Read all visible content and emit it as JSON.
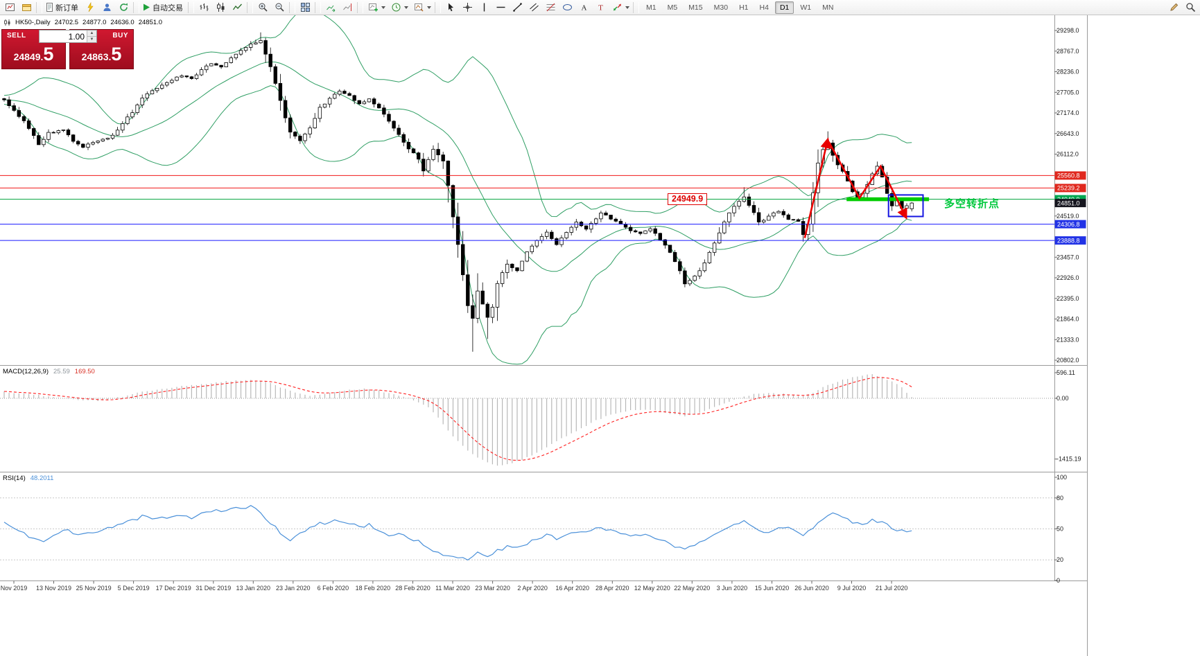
{
  "toolbar": {
    "new_order_label": "新订单",
    "autotrade_label": "自动交易",
    "timeframes": [
      "M1",
      "M5",
      "M15",
      "M30",
      "H1",
      "H4",
      "D1",
      "W1",
      "MN"
    ],
    "active_timeframe": "D1"
  },
  "chart_header": {
    "symbol_period": "HK50-,Daily",
    "open": "24702.5",
    "high": "24877.0",
    "low": "24636.0",
    "close": "24851.0"
  },
  "one_click": {
    "sell_label": "SELL",
    "buy_label": "BUY",
    "volume": "1.00",
    "sell_price_main": "24849.",
    "sell_price_big": "5",
    "buy_price_main": "24863.",
    "buy_price_big": "5"
  },
  "annotations": {
    "price_callout": "24949.9",
    "cn_note": "多空转折点"
  },
  "indicators": {
    "macd_label": "MACD(12,26,9)",
    "macd_value": "25.59",
    "macd_signal_value": "169.50",
    "rsi_label": "RSI(14)",
    "rsi_value": "48.2011"
  },
  "price_axis": {
    "ticks": [
      "29298.0",
      "28767.0",
      "28236.0",
      "27705.0",
      "27174.0",
      "26643.0",
      "26112.0",
      "24519.0",
      "23457.0",
      "22926.0",
      "22395.0",
      "21864.0",
      "21333.0",
      "20802.0"
    ],
    "badges": [
      {
        "label": "25560.8",
        "price": 25560.8,
        "bg": "#e0281e"
      },
      {
        "label": "25239.2",
        "price": 25239.2,
        "bg": "#e0281e"
      },
      {
        "label": "24949.9",
        "price": 24949.9,
        "bg": "#00a650"
      },
      {
        "label": "24851.0",
        "price": 24851.0,
        "bg": "#16161f"
      },
      {
        "label": "24306.8",
        "price": 24306.8,
        "bg": "#2233e6"
      },
      {
        "label": "23888.8",
        "price": 23888.8,
        "bg": "#2233e6"
      }
    ]
  },
  "macd_axis": [
    "596.11",
    "0.00",
    "-1415.19"
  ],
  "rsi_axis": [
    "100",
    "80",
    "50",
    "20",
    "0"
  ],
  "date_axis": [
    "Nov 2019",
    "13 Nov 2019",
    "25 Nov 2019",
    "5 Dec 2019",
    "17 Dec 2019",
    "31 Dec 2019",
    "13 Jan 2020",
    "23 Jan 2020",
    "6 Feb 2020",
    "18 Feb 2020",
    "28 Feb 2020",
    "11 Mar 2020",
    "23 Mar 2020",
    "2 Apr 2020",
    "16 Apr 2020",
    "28 Apr 2020",
    "12 May 2020",
    "22 May 2020",
    "3 Jun 2020",
    "15 Jun 2020",
    "26 Jun 2020",
    "9 Jul 2020",
    "21 Jul 2020"
  ],
  "chart_data": {
    "type": "candlestick",
    "symbol": "HK50-",
    "period": "Daily",
    "bars": 185,
    "price_range": [
      20802,
      29298
    ],
    "last_bar": {
      "open": 24702.5,
      "high": 24877.0,
      "low": 24636.0,
      "close": 24851.0
    },
    "price_keypoints": [
      [
        0,
        27500
      ],
      [
        2,
        27250
      ],
      [
        4,
        26950
      ],
      [
        6,
        26600
      ],
      [
        7,
        26350
      ],
      [
        9,
        26650
      ],
      [
        12,
        26750
      ],
      [
        14,
        26450
      ],
      [
        16,
        26300
      ],
      [
        18,
        26400
      ],
      [
        20,
        26480
      ],
      [
        22,
        26600
      ],
      [
        24,
        26900
      ],
      [
        26,
        27200
      ],
      [
        28,
        27550
      ],
      [
        30,
        27750
      ],
      [
        33,
        27950
      ],
      [
        36,
        28150
      ],
      [
        38,
        28050
      ],
      [
        40,
        28300
      ],
      [
        42,
        28450
      ],
      [
        44,
        28350
      ],
      [
        46,
        28600
      ],
      [
        48,
        28800
      ],
      [
        50,
        28950
      ],
      [
        52,
        29050
      ],
      [
        53,
        28700
      ],
      [
        54,
        28350
      ],
      [
        55,
        27950
      ],
      [
        57,
        27050
      ],
      [
        58,
        26700
      ],
      [
        60,
        26450
      ],
      [
        62,
        26800
      ],
      [
        64,
        27300
      ],
      [
        66,
        27550
      ],
      [
        68,
        27750
      ],
      [
        70,
        27600
      ],
      [
        72,
        27400
      ],
      [
        74,
        27550
      ],
      [
        76,
        27300
      ],
      [
        78,
        26950
      ],
      [
        80,
        26600
      ],
      [
        82,
        26250
      ],
      [
        84,
        26000
      ],
      [
        85,
        25700
      ],
      [
        87,
        26250
      ],
      [
        89,
        25950
      ],
      [
        90,
        25300
      ],
      [
        91,
        24500
      ],
      [
        92,
        23800
      ],
      [
        93,
        23000
      ],
      [
        94,
        22200
      ],
      [
        95,
        21900
      ],
      [
        96,
        22600
      ],
      [
        97,
        22250
      ],
      [
        98,
        21900
      ],
      [
        99,
        22150
      ],
      [
        100,
        22800
      ],
      [
        102,
        23300
      ],
      [
        104,
        23100
      ],
      [
        106,
        23600
      ],
      [
        108,
        23900
      ],
      [
        110,
        24100
      ],
      [
        112,
        23800
      ],
      [
        114,
        24100
      ],
      [
        116,
        24350
      ],
      [
        118,
        24200
      ],
      [
        121,
        24600
      ],
      [
        123,
        24450
      ],
      [
        125,
        24300
      ],
      [
        127,
        24150
      ],
      [
        129,
        24050
      ],
      [
        131,
        24200
      ],
      [
        133,
        23900
      ],
      [
        135,
        23600
      ],
      [
        137,
        23100
      ],
      [
        138,
        22750
      ],
      [
        140,
        22950
      ],
      [
        142,
        23300
      ],
      [
        145,
        24100
      ],
      [
        147,
        24600
      ],
      [
        149,
        24900
      ],
      [
        150,
        25000
      ],
      [
        152,
        24600
      ],
      [
        153,
        24350
      ],
      [
        155,
        24500
      ],
      [
        157,
        24650
      ],
      [
        159,
        24450
      ],
      [
        161,
        24400
      ],
      [
        162,
        24050
      ],
      [
        163,
        24300
      ],
      [
        164,
        25100
      ],
      [
        165,
        25900
      ],
      [
        166,
        26250
      ],
      [
        167,
        26400
      ],
      [
        168,
        26100
      ],
      [
        169,
        25850
      ],
      [
        170,
        25650
      ],
      [
        171,
        25400
      ],
      [
        172,
        25150
      ],
      [
        173,
        24980
      ],
      [
        174,
        25120
      ],
      [
        175,
        25350
      ],
      [
        176,
        25600
      ],
      [
        177,
        25780
      ],
      [
        178,
        25500
      ],
      [
        179,
        25100
      ],
      [
        180,
        24800
      ],
      [
        181,
        24920
      ],
      [
        182,
        24700
      ],
      [
        183,
        24760
      ],
      [
        184,
        24851
      ]
    ],
    "wick_overrides": [
      {
        "i": 52,
        "high": 29250
      },
      {
        "i": 95,
        "low": 21020
      },
      {
        "i": 98,
        "low": 21350
      },
      {
        "i": 150,
        "high": 25260
      },
      {
        "i": 162,
        "low": 23860
      },
      {
        "i": 167,
        "high": 26700
      },
      {
        "i": 177,
        "high": 25920
      }
    ],
    "hlines": [
      {
        "price": 25560.8,
        "color": "#f01818",
        "width": 1
      },
      {
        "price": 25239.2,
        "color": "#f01818",
        "width": 1
      },
      {
        "price": 24949.9,
        "color": "#00a23c",
        "width": 1
      },
      {
        "price": 24306.8,
        "color": "#1a1aff",
        "width": 1
      },
      {
        "price": 23888.8,
        "color": "#1a1aff",
        "width": 1
      }
    ],
    "bollinger": {
      "period": 20,
      "deviation": 2,
      "color": "#2e9e63"
    },
    "macd": {
      "keypoints": [
        [
          0,
          150
        ],
        [
          4,
          110
        ],
        [
          8,
          60
        ],
        [
          12,
          10
        ],
        [
          16,
          -40
        ],
        [
          20,
          -60
        ],
        [
          24,
          40
        ],
        [
          28,
          150
        ],
        [
          32,
          220
        ],
        [
          36,
          280
        ],
        [
          40,
          330
        ],
        [
          44,
          380
        ],
        [
          48,
          420
        ],
        [
          50,
          430
        ],
        [
          52,
          400
        ],
        [
          54,
          350
        ],
        [
          56,
          260
        ],
        [
          58,
          180
        ],
        [
          60,
          110
        ],
        [
          62,
          60
        ],
        [
          64,
          90
        ],
        [
          66,
          130
        ],
        [
          68,
          170
        ],
        [
          70,
          200
        ],
        [
          72,
          215
        ],
        [
          74,
          220
        ],
        [
          76,
          180
        ],
        [
          78,
          120
        ],
        [
          80,
          60
        ],
        [
          82,
          0
        ],
        [
          84,
          -90
        ],
        [
          86,
          -220
        ],
        [
          88,
          -450
        ],
        [
          90,
          -750
        ],
        [
          92,
          -1000
        ],
        [
          94,
          -1220
        ],
        [
          96,
          -1380
        ],
        [
          98,
          -1500
        ],
        [
          100,
          -1570
        ],
        [
          102,
          -1545
        ],
        [
          104,
          -1470
        ],
        [
          106,
          -1380
        ],
        [
          108,
          -1260
        ],
        [
          110,
          -1130
        ],
        [
          112,
          -1000
        ],
        [
          114,
          -880
        ],
        [
          116,
          -760
        ],
        [
          118,
          -640
        ],
        [
          120,
          -520
        ],
        [
          122,
          -420
        ],
        [
          124,
          -350
        ],
        [
          126,
          -300
        ],
        [
          128,
          -265
        ],
        [
          130,
          -255
        ],
        [
          132,
          -285
        ],
        [
          134,
          -330
        ],
        [
          136,
          -380
        ],
        [
          138,
          -410
        ],
        [
          140,
          -380
        ],
        [
          142,
          -310
        ],
        [
          144,
          -210
        ],
        [
          146,
          -120
        ],
        [
          148,
          -40
        ],
        [
          150,
          40
        ],
        [
          152,
          95
        ],
        [
          154,
          120
        ],
        [
          156,
          115
        ],
        [
          158,
          100
        ],
        [
          160,
          75
        ],
        [
          162,
          55
        ],
        [
          164,
          120
        ],
        [
          166,
          250
        ],
        [
          168,
          350
        ],
        [
          170,
          430
        ],
        [
          172,
          490
        ],
        [
          174,
          530
        ],
        [
          176,
          560
        ],
        [
          178,
          490
        ],
        [
          180,
          390
        ],
        [
          182,
          250
        ],
        [
          184,
          26
        ]
      ],
      "hist_color": "#b8b8b8",
      "signal_color": "#ff2020",
      "current": 25.59,
      "current_signal": 169.5
    },
    "rsi": {
      "keypoints": [
        [
          0,
          55
        ],
        [
          2,
          50
        ],
        [
          4,
          45
        ],
        [
          6,
          40
        ],
        [
          8,
          38
        ],
        [
          10,
          44
        ],
        [
          12,
          50
        ],
        [
          14,
          46
        ],
        [
          16,
          44
        ],
        [
          18,
          47
        ],
        [
          20,
          48
        ],
        [
          22,
          52
        ],
        [
          24,
          55
        ],
        [
          26,
          58
        ],
        [
          28,
          62
        ],
        [
          30,
          61
        ],
        [
          32,
          60
        ],
        [
          34,
          62
        ],
        [
          36,
          63
        ],
        [
          38,
          61
        ],
        [
          40,
          65
        ],
        [
          42,
          67
        ],
        [
          44,
          68
        ],
        [
          46,
          69
        ],
        [
          48,
          70
        ],
        [
          50,
          72
        ],
        [
          52,
          66
        ],
        [
          54,
          56
        ],
        [
          56,
          46
        ],
        [
          58,
          40
        ],
        [
          60,
          45
        ],
        [
          62,
          50
        ],
        [
          64,
          55
        ],
        [
          66,
          57
        ],
        [
          68,
          58
        ],
        [
          70,
          56
        ],
        [
          72,
          52
        ],
        [
          74,
          54
        ],
        [
          76,
          48
        ],
        [
          78,
          44
        ],
        [
          80,
          46
        ],
        [
          82,
          41
        ],
        [
          84,
          38
        ],
        [
          86,
          32
        ],
        [
          88,
          27
        ],
        [
          90,
          24
        ],
        [
          92,
          22
        ],
        [
          94,
          21
        ],
        [
          96,
          27
        ],
        [
          98,
          24
        ],
        [
          100,
          29
        ],
        [
          102,
          33
        ],
        [
          104,
          31
        ],
        [
          106,
          36
        ],
        [
          108,
          41
        ],
        [
          110,
          44
        ],
        [
          112,
          41
        ],
        [
          114,
          44
        ],
        [
          116,
          48
        ],
        [
          118,
          46
        ],
        [
          120,
          51
        ],
        [
          122,
          49
        ],
        [
          124,
          47
        ],
        [
          126,
          45
        ],
        [
          128,
          44
        ],
        [
          130,
          46
        ],
        [
          132,
          42
        ],
        [
          134,
          38
        ],
        [
          136,
          33
        ],
        [
          138,
          30
        ],
        [
          140,
          34
        ],
        [
          142,
          38
        ],
        [
          144,
          45
        ],
        [
          146,
          50
        ],
        [
          148,
          55
        ],
        [
          150,
          58
        ],
        [
          152,
          50
        ],
        [
          154,
          47
        ],
        [
          156,
          49
        ],
        [
          158,
          52
        ],
        [
          160,
          49
        ],
        [
          162,
          45
        ],
        [
          164,
          52
        ],
        [
          166,
          60
        ],
        [
          168,
          66
        ],
        [
          170,
          61
        ],
        [
          172,
          57
        ],
        [
          174,
          54
        ],
        [
          176,
          58
        ],
        [
          178,
          56
        ],
        [
          180,
          51
        ],
        [
          182,
          48
        ],
        [
          184,
          48.2
        ]
      ],
      "color": "#4a90d9",
      "levels": [
        80,
        50,
        20
      ],
      "current": 48.2011
    },
    "shapes": {
      "green_segment": {
        "bar1": 170.8,
        "bar2": 187.5,
        "price": 24949.9,
        "color": "#00cc00",
        "width": 5.5
      },
      "blue_rect": {
        "bar1": 179.3,
        "bar2": 186.3,
        "price_top": 25060,
        "price_bottom": 24505,
        "color": "#1515e0",
        "width": 2
      },
      "arrow_up": {
        "points": [
          [
            162.3,
            23950
          ],
          [
            167.0,
            26500
          ]
        ],
        "color": "#e80000",
        "width": 2.6
      },
      "arrow_down": {
        "points": [
          [
            167.2,
            26430
          ],
          [
            173.4,
            24980
          ],
          [
            177.7,
            25800
          ],
          [
            182.9,
            24470
          ]
        ],
        "color": "#e80000",
        "width": 2.6
      }
    }
  }
}
